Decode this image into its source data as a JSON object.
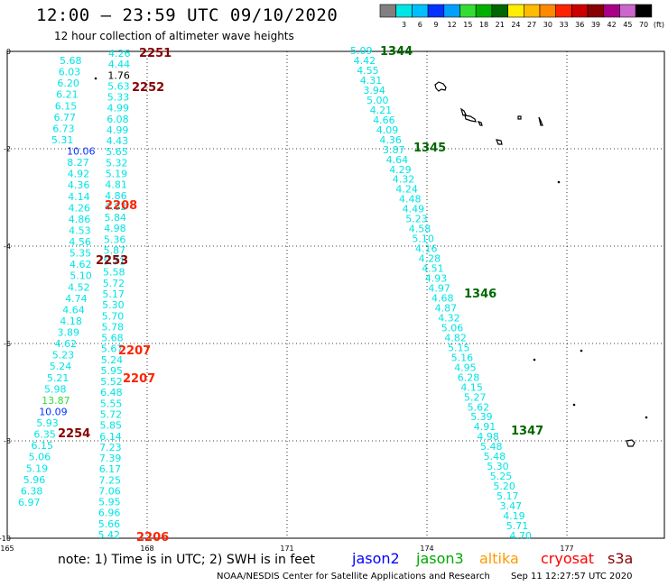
{
  "header": {
    "title": "12:00 – 23:59 UTC 09/10/2020",
    "subtitle": "12 hour collection of altimeter wave heights"
  },
  "color_scale": {
    "bins": [
      {
        "label": "",
        "color": "#808080"
      },
      {
        "label": "3",
        "color": "#00e5e5"
      },
      {
        "label": "6",
        "color": "#00bfff"
      },
      {
        "label": "9",
        "color": "#0033ff"
      },
      {
        "label": "12",
        "color": "#00a0ff"
      },
      {
        "label": "15",
        "color": "#33dd33"
      },
      {
        "label": "18",
        "color": "#00b000"
      },
      {
        "label": "21",
        "color": "#006600"
      },
      {
        "label": "24",
        "color": "#ffee00"
      },
      {
        "label": "27",
        "color": "#ffbb00"
      },
      {
        "label": "30",
        "color": "#ff8800"
      },
      {
        "label": "33",
        "color": "#ff2200"
      },
      {
        "label": "36",
        "color": "#cc0000"
      },
      {
        "label": "39",
        "color": "#880000"
      },
      {
        "label": "42",
        "color": "#aa0088"
      },
      {
        "label": "45",
        "color": "#cc66cc"
      },
      {
        "label": "70",
        "color": "#000000"
      }
    ],
    "unit": "(ft)"
  },
  "axes": {
    "lat_ticks": [
      "0",
      "-2",
      "-4",
      "-6",
      "-8",
      "-10"
    ],
    "lon_ticks": [
      "165",
      "168",
      "171",
      "174",
      "177"
    ]
  },
  "tracks": {
    "track_a": [
      "4.26",
      "4.44",
      "1.76",
      "5.63",
      "5.33",
      "4.99",
      "6.08",
      "4.99",
      "4.43",
      "5.65",
      "5.32",
      "5.19",
      "4.81",
      "4.86",
      "4.82",
      "5.84",
      "4.98",
      "5.36",
      "5.87",
      "5.71",
      "5.58",
      "5.72",
      "5.17",
      "5.30",
      "5.70",
      "5.78",
      "5.68",
      "5.67",
      "5.24",
      "5.95",
      "5.52",
      "6.48",
      "5.55",
      "5.72",
      "5.85",
      "6.14",
      "7.23",
      "7.39",
      "6.17",
      "7.25",
      "7.06",
      "5.95",
      "6.96",
      "5.66",
      "5.42"
    ],
    "track_b": [
      "5.68",
      "6.03",
      "6.20",
      "6.21",
      "6.15",
      "6.77",
      "6.73",
      "5.31",
      "10.06",
      "8.27",
      "4.92",
      "4.36",
      "4.14",
      "4.26",
      "4.86",
      "4.53",
      "4.56",
      "5.35",
      "4.62",
      "5.10",
      "4.52",
      "4.74",
      "4.64",
      "4.18",
      "3.89",
      "4.62",
      "5.23",
      "5.24",
      "5.21",
      "5.98",
      "13.87",
      "10.09",
      "5.93",
      "6.35",
      "6.15",
      "5.06",
      "5.19",
      "5.96",
      "6.38",
      "6.97"
    ],
    "track_c": [
      "5.09",
      "4.42",
      "4.55",
      "4.31",
      "3.94",
      "5.00",
      "4.21",
      "4.66",
      "4.09",
      "4.36",
      "3.87",
      "4.64",
      "4.29",
      "4.32",
      "4.24",
      "4.48",
      "4.49",
      "5.23",
      "4.58",
      "5.10",
      "4.16",
      "4.28",
      "4.51",
      "4.93",
      "4.97",
      "4.68",
      "4.87",
      "4.32",
      "5.06",
      "4.82",
      "5.15",
      "5.16",
      "4.95",
      "6.28",
      "4.15",
      "5.27",
      "5.62",
      "5.39",
      "4.91",
      "4.98",
      "5.48",
      "5.48",
      "5.30",
      "5.25",
      "5.20",
      "5.17",
      "3.47",
      "4.19",
      "5.71",
      "4.70"
    ],
    "track_a_colors": {
      "normal": "#00e5e5",
      "low": "#000000"
    },
    "track_b_colors": {
      "normal": "#00e5e5",
      "high1": "#33dd33",
      "high2": "#0033ff"
    }
  },
  "time_labels": [
    {
      "text": "2251",
      "color": "#880000"
    },
    {
      "text": "2252",
      "color": "#880000"
    },
    {
      "text": "2208",
      "color": "#ff2200"
    },
    {
      "text": "2253",
      "color": "#880000"
    },
    {
      "text": "2207",
      "color": "#ff2200"
    },
    {
      "text": "2207",
      "color": "#ff2200"
    },
    {
      "text": "2254",
      "color": "#880000"
    },
    {
      "text": "2206",
      "color": "#ff2200"
    },
    {
      "text": "1344",
      "color": "#006600"
    },
    {
      "text": "1345",
      "color": "#006600"
    },
    {
      "text": "1346",
      "color": "#006600"
    },
    {
      "text": "1347",
      "color": "#006600"
    }
  ],
  "note": "note: 1) Time is in UTC; 2) SWH is in feet",
  "legend_sats": [
    {
      "label": "jason2",
      "color": "#0000ff"
    },
    {
      "label": "jason3",
      "color": "#00aa00"
    },
    {
      "label": "altika",
      "color": "#ff9900"
    },
    {
      "label": "cryosat",
      "color": "#ff0000"
    },
    {
      "label": "s3a",
      "color": "#880000"
    }
  ],
  "footer": {
    "credit": "NOAA/NESDIS Center for Satellite Applications and Research",
    "stamp": "Sep 11 12:27:57 UTC 2020"
  }
}
